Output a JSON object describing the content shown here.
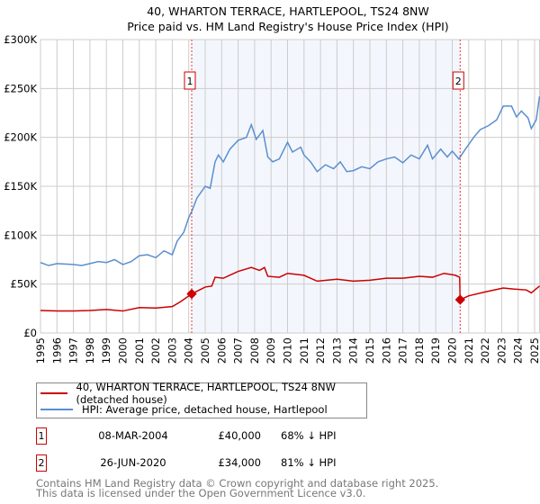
{
  "chart_data": {
    "type": "line",
    "title": "40, WHARTON TERRACE, HARTLEPOOL, TS24 8NW",
    "subtitle": "Price paid vs. HM Land Registry's House Price Index (HPI)",
    "xlim": [
      1995,
      2025.3
    ],
    "ylim": [
      0,
      300000
    ],
    "x_ticks": [
      "1995",
      "1996",
      "1997",
      "1998",
      "1999",
      "2000",
      "2001",
      "2002",
      "2003",
      "2004",
      "2005",
      "2006",
      "2007",
      "2008",
      "2009",
      "2010",
      "2011",
      "2012",
      "2013",
      "2014",
      "2015",
      "2016",
      "2017",
      "2018",
      "2019",
      "2020",
      "2021",
      "2022",
      "2023",
      "2024",
      "2025"
    ],
    "y_ticks": [
      {
        "value": 0,
        "label": "£0"
      },
      {
        "value": 50000,
        "label": "£50K"
      },
      {
        "value": 100000,
        "label": "£100K"
      },
      {
        "value": 150000,
        "label": "£150K"
      },
      {
        "value": 200000,
        "label": "£200K"
      },
      {
        "value": 250000,
        "label": "£250K"
      },
      {
        "value": 300000,
        "label": "£300K"
      }
    ],
    "grid": true,
    "shaded_range": [
      2004.18,
      2020.48
    ],
    "series": [
      {
        "name": "40, WHARTON TERRACE, HARTLEPOOL, TS24 8NW (detached house)",
        "color": "#cc0000",
        "points": [
          [
            1995,
            23000
          ],
          [
            1996,
            22500
          ],
          [
            1997,
            22500
          ],
          [
            1998,
            23000
          ],
          [
            1999,
            24000
          ],
          [
            2000,
            22500
          ],
          [
            2001,
            26000
          ],
          [
            2002,
            25500
          ],
          [
            2003,
            27000
          ],
          [
            2003.5,
            32000
          ],
          [
            2004.18,
            40000
          ],
          [
            2005,
            47000
          ],
          [
            2005.4,
            48000
          ],
          [
            2005.6,
            57000
          ],
          [
            2006.1,
            56000
          ],
          [
            2007,
            63000
          ],
          [
            2007.8,
            67000
          ],
          [
            2008.3,
            64000
          ],
          [
            2008.6,
            67000
          ],
          [
            2008.8,
            58000
          ],
          [
            2009.5,
            57000
          ],
          [
            2010,
            61000
          ],
          [
            2011,
            59000
          ],
          [
            2011.8,
            53000
          ],
          [
            2013,
            55000
          ],
          [
            2014,
            53000
          ],
          [
            2015,
            54000
          ],
          [
            2016,
            56000
          ],
          [
            2017,
            56000
          ],
          [
            2018,
            58000
          ],
          [
            2018.8,
            57000
          ],
          [
            2019.5,
            61000
          ],
          [
            2020.2,
            59000
          ],
          [
            2020.45,
            57000
          ],
          [
            2020.48,
            34000
          ],
          [
            2021,
            38000
          ],
          [
            2022,
            42000
          ],
          [
            2023.1,
            46000
          ],
          [
            2023.7,
            45000
          ],
          [
            2024.5,
            44000
          ],
          [
            2024.8,
            41000
          ],
          [
            2025.3,
            48000
          ]
        ]
      },
      {
        "name": "HPI: Average price, detached house, Hartlepool",
        "color": "#5b8fd0",
        "points": [
          [
            1995,
            72000
          ],
          [
            1995.5,
            69000
          ],
          [
            1996,
            71000
          ],
          [
            1997,
            70000
          ],
          [
            1997.5,
            69000
          ],
          [
            1998,
            71000
          ],
          [
            1998.5,
            73000
          ],
          [
            1999,
            72000
          ],
          [
            1999.5,
            75000
          ],
          [
            2000,
            70000
          ],
          [
            2000.5,
            73000
          ],
          [
            2001,
            79000
          ],
          [
            2001.5,
            80000
          ],
          [
            2002,
            77000
          ],
          [
            2002.5,
            84000
          ],
          [
            2003,
            80000
          ],
          [
            2003.3,
            94000
          ],
          [
            2003.7,
            103000
          ],
          [
            2004,
            118000
          ],
          [
            2004.2,
            125000
          ],
          [
            2004.5,
            138000
          ],
          [
            2005,
            150000
          ],
          [
            2005.3,
            148000
          ],
          [
            2005.6,
            175000
          ],
          [
            2005.8,
            182000
          ],
          [
            2006.1,
            175000
          ],
          [
            2006.5,
            188000
          ],
          [
            2007,
            197000
          ],
          [
            2007.5,
            200000
          ],
          [
            2007.8,
            213000
          ],
          [
            2008.1,
            198000
          ],
          [
            2008.5,
            207000
          ],
          [
            2008.8,
            180000
          ],
          [
            2009.1,
            175000
          ],
          [
            2009.5,
            178000
          ],
          [
            2010,
            195000
          ],
          [
            2010.3,
            185000
          ],
          [
            2010.8,
            190000
          ],
          [
            2011,
            182000
          ],
          [
            2011.4,
            175000
          ],
          [
            2011.8,
            165000
          ],
          [
            2012.3,
            172000
          ],
          [
            2012.8,
            168000
          ],
          [
            2013.2,
            175000
          ],
          [
            2013.6,
            165000
          ],
          [
            2014,
            166000
          ],
          [
            2014.5,
            170000
          ],
          [
            2015,
            168000
          ],
          [
            2015.5,
            175000
          ],
          [
            2016,
            178000
          ],
          [
            2016.5,
            180000
          ],
          [
            2017,
            174000
          ],
          [
            2017.5,
            182000
          ],
          [
            2018,
            178000
          ],
          [
            2018.5,
            192000
          ],
          [
            2018.8,
            178000
          ],
          [
            2019.3,
            188000
          ],
          [
            2019.7,
            180000
          ],
          [
            2020,
            186000
          ],
          [
            2020.4,
            178000
          ],
          [
            2020.8,
            188000
          ],
          [
            2021.3,
            200000
          ],
          [
            2021.7,
            208000
          ],
          [
            2022.2,
            212000
          ],
          [
            2022.7,
            218000
          ],
          [
            2023.1,
            232000
          ],
          [
            2023.6,
            232000
          ],
          [
            2023.9,
            221000
          ],
          [
            2024.2,
            227000
          ],
          [
            2024.6,
            220000
          ],
          [
            2024.8,
            209000
          ],
          [
            2025.1,
            218000
          ],
          [
            2025.3,
            242000
          ]
        ]
      }
    ],
    "sales": [
      {
        "label": "1",
        "x": 2004.18,
        "value": 40000,
        "date": "08-MAR-2004",
        "price": "£40,000",
        "hpi_diff": "68% ↓ HPI"
      },
      {
        "label": "2",
        "x": 2020.48,
        "value": 34000,
        "date": "26-JUN-2020",
        "price": "£34,000",
        "hpi_diff": "81% ↓ HPI"
      }
    ],
    "legend_position": "below"
  },
  "footer": {
    "line1": "Contains HM Land Registry data © Crown copyright and database right 2025.",
    "line2": "This data is licensed under the Open Government Licence v3.0."
  }
}
